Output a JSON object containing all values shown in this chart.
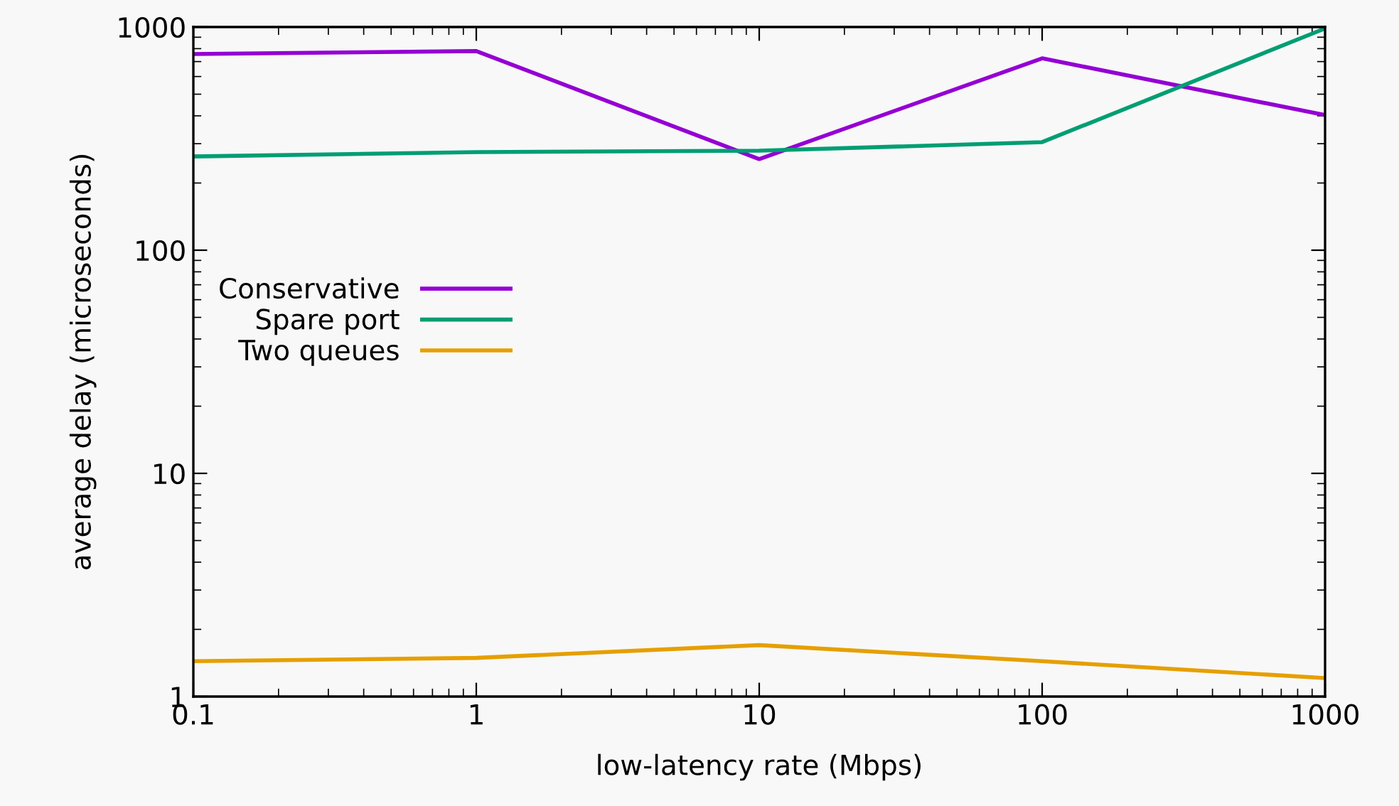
{
  "chart_data": {
    "type": "line",
    "xlabel": "low-latency rate (Mbps)",
    "ylabel": "average delay (microseconds)",
    "x": [
      0.1,
      1,
      10,
      100,
      1000
    ],
    "series": [
      {
        "name": "Conservative",
        "color": "#9400d3",
        "values": [
          757,
          780,
          256,
          724,
          403
        ]
      },
      {
        "name": "Spare port",
        "color": "#009e73",
        "values": [
          263,
          275,
          279,
          305,
          985
        ]
      },
      {
        "name": "Two queues",
        "color": "#e69f00",
        "values": [
          1.44,
          1.49,
          1.7,
          1.44,
          1.21
        ]
      }
    ],
    "log": "xy",
    "xlim": [
      0.1,
      1000
    ],
    "ylim": [
      1,
      1000
    ],
    "xticks": [
      0.1,
      1,
      10,
      100,
      1000
    ],
    "yticks": [
      1,
      10,
      100,
      1000
    ],
    "grid": false,
    "legend": "left",
    "marker": "none",
    "line_style": "solid"
  }
}
